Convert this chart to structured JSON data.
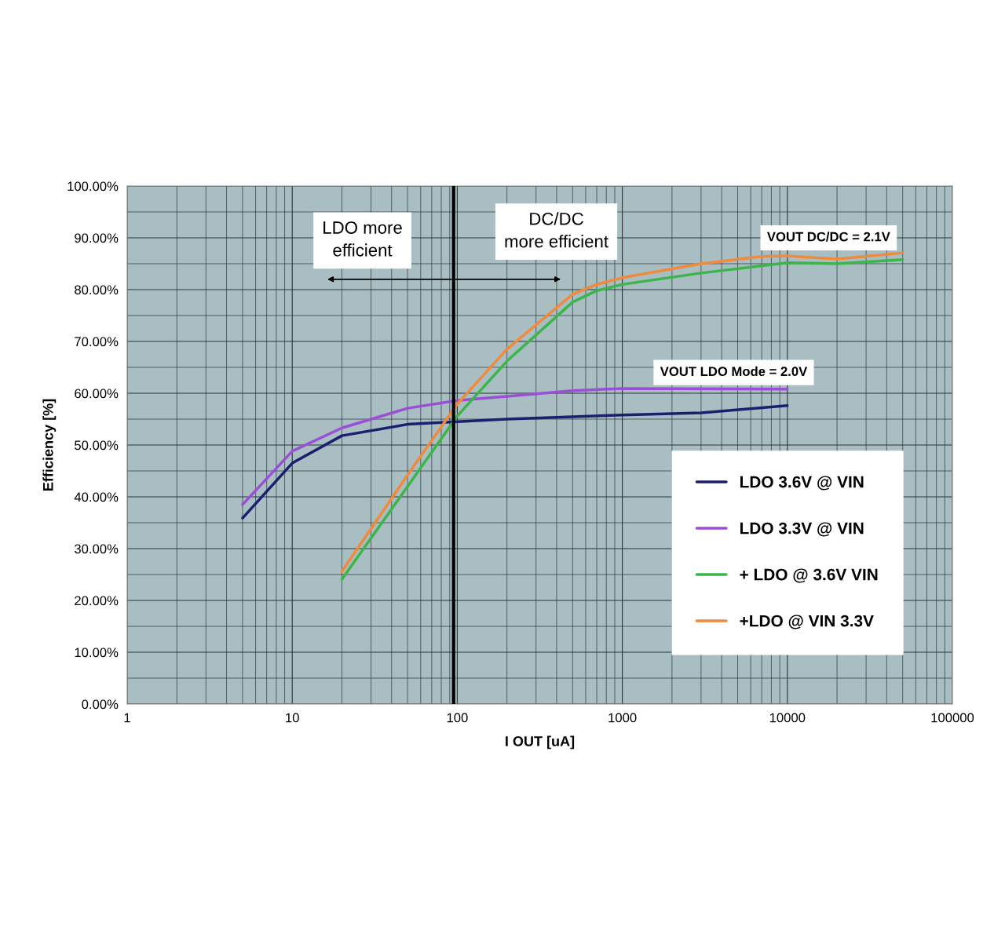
{
  "chart_data": {
    "type": "line",
    "xlabel": "I OUT [uA]",
    "ylabel": "Efficiency [%]",
    "log": "x",
    "xlim": [
      1,
      100000
    ],
    "xticks": [
      1,
      10,
      100,
      1000,
      10000,
      100000
    ],
    "ylim": [
      0,
      100
    ],
    "yticks": [
      {
        "value": 0,
        "label": "0.00%"
      },
      {
        "value": 10,
        "label": "10.00%"
      },
      {
        "value": 20,
        "label": "20.00%"
      },
      {
        "value": 30,
        "label": "30.00%"
      },
      {
        "value": 40,
        "label": "40.00%"
      },
      {
        "value": 50,
        "label": "50.00%"
      },
      {
        "value": 60,
        "label": "60.00%"
      },
      {
        "value": 70,
        "label": "70.00%"
      },
      {
        "value": 80,
        "label": "80.00%"
      },
      {
        "value": 90,
        "label": "90.00%"
      },
      {
        "value": 100,
        "label": "100.00%"
      }
    ],
    "grid": true,
    "legend": "bottom right",
    "marker": "none",
    "line_style": "solid",
    "ref_lines": [
      {
        "axis": "x",
        "value": 95,
        "color": "#000000"
      }
    ],
    "annotations": [
      "LDO more\nefficient",
      "DC/DC\nmore efficient",
      "VOUT DC/DC = 2.1V",
      "VOUT LDO Mode = 2.0V"
    ],
    "series": [
      {
        "name": "LDO 3.6V @ VIN",
        "color": "#1c1f6e",
        "x": [
          5,
          10,
          20,
          50,
          100,
          200,
          1000,
          3000,
          10000
        ],
        "values": [
          35.9,
          46.5,
          51.8,
          54,
          54.5,
          55,
          55.8,
          56.2,
          57.6
        ]
      },
      {
        "name": "LDO 3.3V @ VIN",
        "color": "#9b4fd6",
        "x": [
          5,
          10,
          20,
          50,
          100,
          200,
          500,
          1000,
          10000
        ],
        "values": [
          38.5,
          48.8,
          53.3,
          57.1,
          58.6,
          59.4,
          60.5,
          60.9,
          60.8
        ]
      },
      {
        "name": "+ LDO @ 3.6V VIN",
        "color": "#3cb54a",
        "x": [
          20,
          50,
          100,
          200,
          500,
          700,
          1000,
          3000,
          10000,
          20000,
          50000
        ],
        "values": [
          24.1,
          42,
          55.6,
          66.2,
          77.6,
          79.8,
          81,
          83.2,
          85.2,
          85,
          85.8
        ]
      },
      {
        "name": "+LDO @ VIN 3.3V",
        "color": "#f08a3c",
        "x": [
          20,
          50,
          100,
          200,
          500,
          700,
          1000,
          3000,
          7000,
          10000,
          20000,
          50000
        ],
        "values": [
          25.6,
          44.2,
          57.9,
          68.5,
          79.1,
          81,
          82.3,
          85,
          86.4,
          86.5,
          85.9,
          87.1
        ]
      }
    ]
  }
}
